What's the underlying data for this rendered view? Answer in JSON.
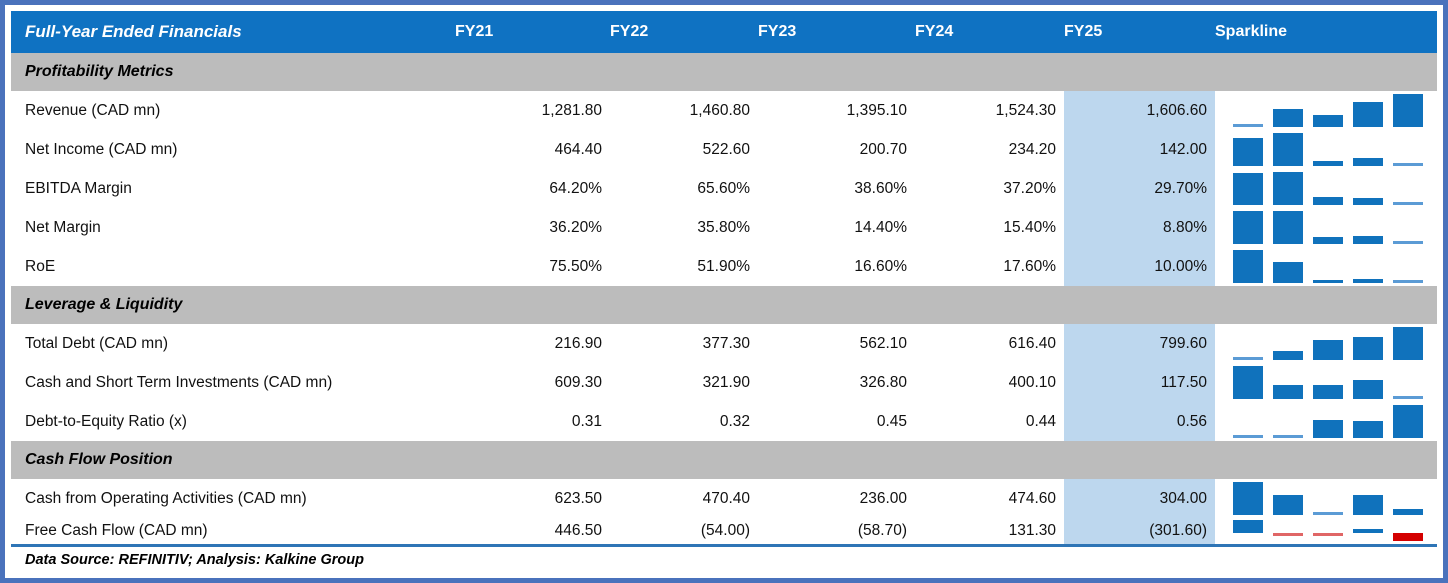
{
  "chart_data": {
    "type": "table",
    "title": "Full-Year Ended Financials",
    "columns": [
      "FY21",
      "FY22",
      "FY23",
      "FY24",
      "FY25"
    ],
    "sparkline_column": "Sparkline",
    "highlight_column": "FY25",
    "footer": "Data Source: REFINITIV; Analysis: Kalkine Group",
    "sparkline_type": "bar",
    "sections": [
      {
        "name": "Profitability Metrics",
        "rows": [
          {
            "metric": "Revenue (CAD mn)",
            "display": [
              "1,281.80",
              "1,460.80",
              "1,395.10",
              "1,524.30",
              "1,606.60"
            ],
            "values": [
              1281.8,
              1460.8,
              1395.1,
              1524.3,
              1606.6
            ]
          },
          {
            "metric": "Net Income (CAD mn)",
            "display": [
              "464.40",
              "522.60",
              "200.70",
              "234.20",
              "142.00"
            ],
            "values": [
              464.4,
              522.6,
              200.7,
              234.2,
              142.0
            ]
          },
          {
            "metric": "EBITDA Margin",
            "display": [
              "64.20%",
              "65.60%",
              "38.60%",
              "37.20%",
              "29.70%"
            ],
            "values": [
              64.2,
              65.6,
              38.6,
              37.2,
              29.7
            ]
          },
          {
            "metric": "Net Margin",
            "display": [
              "36.20%",
              "35.80%",
              "14.40%",
              "15.40%",
              "8.80%"
            ],
            "values": [
              36.2,
              35.8,
              14.4,
              15.4,
              8.8
            ]
          },
          {
            "metric": "RoE",
            "display": [
              "75.50%",
              "51.90%",
              "16.60%",
              "17.60%",
              "10.00%"
            ],
            "values": [
              75.5,
              51.9,
              16.6,
              17.6,
              10.0
            ]
          }
        ]
      },
      {
        "name": "Leverage & Liquidity",
        "rows": [
          {
            "metric": "Total Debt (CAD mn)",
            "display": [
              "216.90",
              "377.30",
              "562.10",
              "616.40",
              "799.60"
            ],
            "values": [
              216.9,
              377.3,
              562.1,
              616.4,
              799.6
            ]
          },
          {
            "metric": "Cash and Short Term Investments (CAD mn)",
            "display": [
              "609.30",
              "321.90",
              "326.80",
              "400.10",
              "117.50"
            ],
            "values": [
              609.3,
              321.9,
              326.8,
              400.1,
              117.5
            ]
          },
          {
            "metric": "Debt-to-Equity Ratio (x)",
            "display": [
              "0.31",
              "0.32",
              "0.45",
              "0.44",
              "0.56"
            ],
            "values": [
              0.31,
              0.32,
              0.45,
              0.44,
              0.56
            ]
          }
        ]
      },
      {
        "name": "Cash Flow Position",
        "rows": [
          {
            "metric": "Cash from Operating Activities (CAD mn)",
            "display": [
              "623.50",
              "470.40",
              "236.00",
              "474.60",
              "304.00"
            ],
            "values": [
              623.5,
              470.4,
              236.0,
              474.6,
              304.0
            ]
          },
          {
            "metric": "Free Cash Flow (CAD mn)",
            "display": [
              "446.50",
              "(54.00)",
              "(58.70)",
              "131.30",
              "(301.60)"
            ],
            "values": [
              446.5,
              -54.0,
              -58.7,
              131.3,
              -301.6
            ],
            "compact": true
          }
        ]
      }
    ]
  },
  "colors": {
    "header_blue": "#0f72c2",
    "section_gray": "#bcbcbc",
    "fy25_highlight": "#bdd7ee",
    "outer_border_blue": "#4a72bc",
    "bottom_rule_blue": "#2e75b6",
    "sparkline_blue": "#1072bc",
    "sparkline_negative_red": "#d40000",
    "header_text": "#ffffff",
    "body_text": "#000000"
  }
}
